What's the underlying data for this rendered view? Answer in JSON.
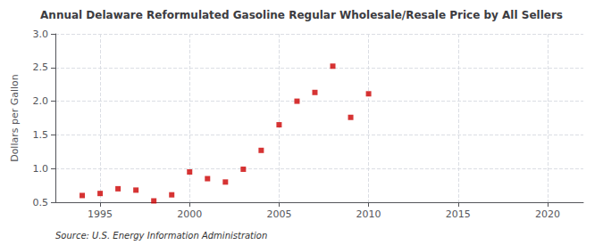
{
  "chart_data": {
    "type": "scatter",
    "title": "Annual Delaware Reformulated Gasoline Regular Wholesale/Resale Price by All Sellers",
    "ylabel": "Dollars per Gallon",
    "source": "Source: U.S. Energy Information Administration",
    "x": [
      1994,
      1995,
      1996,
      1997,
      1998,
      1999,
      2000,
      2001,
      2002,
      2003,
      2004,
      2005,
      2006,
      2007,
      2008,
      2009,
      2010
    ],
    "values": [
      0.6,
      0.63,
      0.7,
      0.68,
      0.52,
      0.61,
      0.95,
      0.85,
      0.8,
      0.99,
      1.27,
      1.65,
      2.0,
      2.13,
      2.52,
      1.76,
      2.11
    ],
    "color": "#cc0000",
    "marker": "square",
    "xlim": [
      1992.5,
      2022
    ],
    "ylim": [
      0.5,
      3.0
    ],
    "xticks": [
      1995,
      2000,
      2005,
      2010,
      2015,
      2020
    ],
    "yticks": [
      0.5,
      {
        "value": 1.0,
        "label": "1.0"
      },
      1.5,
      {
        "value": 2.0,
        "label": "2.0"
      },
      2.5,
      {
        "value": 3.0,
        "label": "3.0"
      }
    ],
    "grid": true
  }
}
